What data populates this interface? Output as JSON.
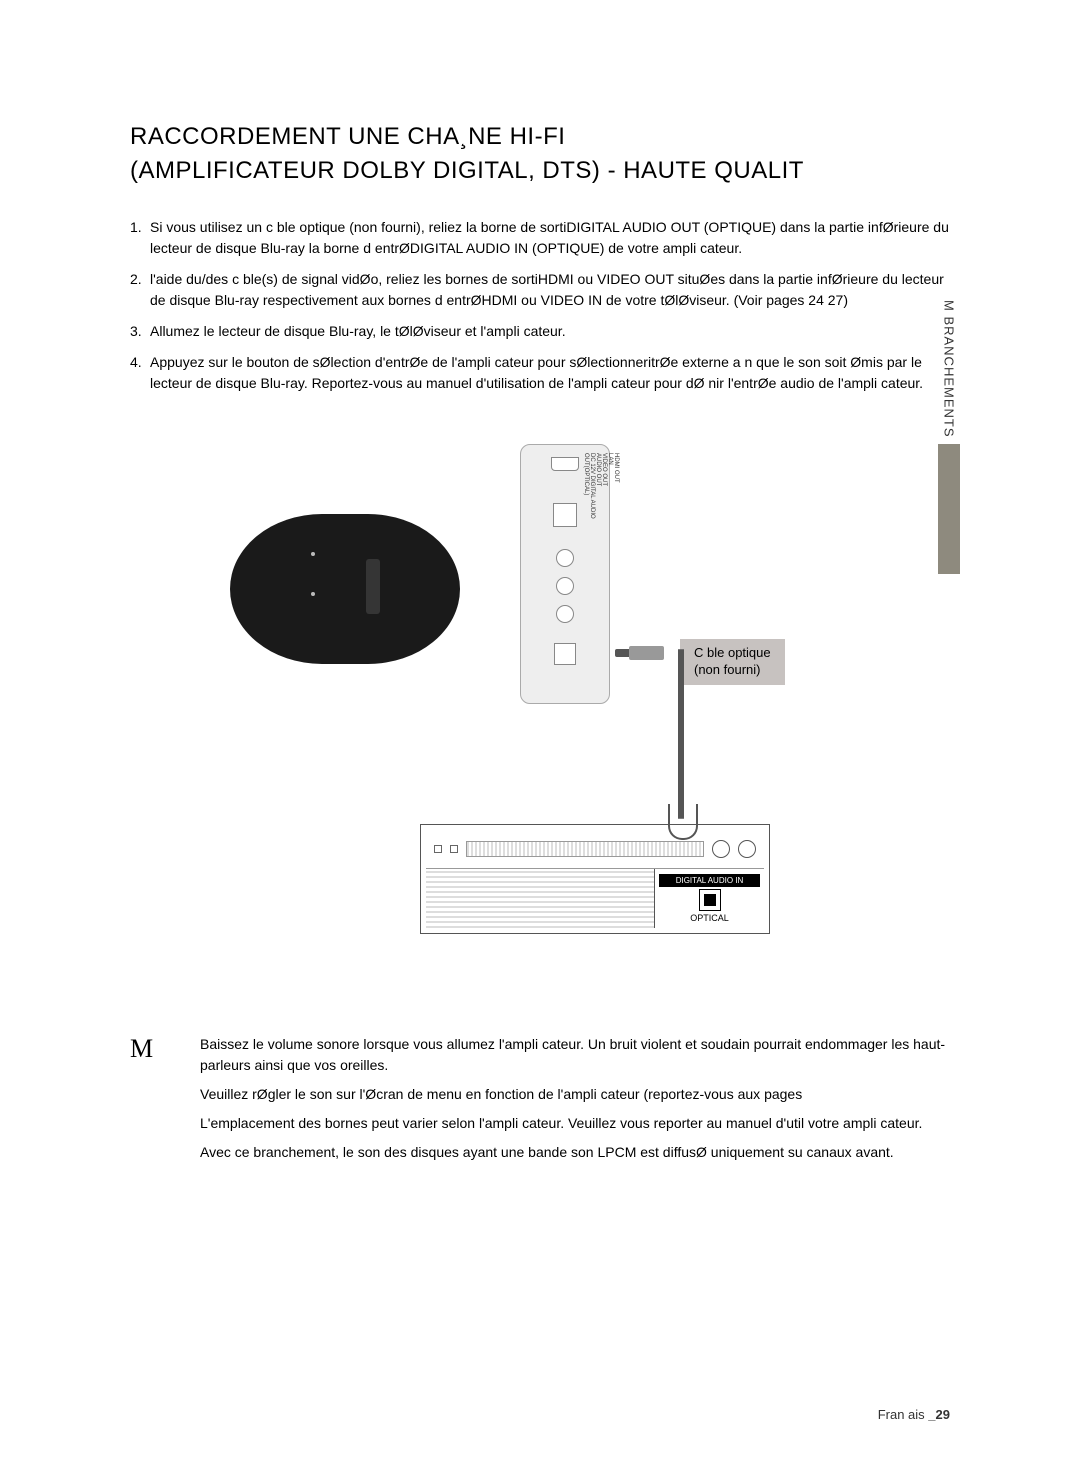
{
  "title_line1": "RACCORDEMENT   UNE CHA¸NE HI-FI",
  "title_line2": "(AMPLIFICATEUR DOLBY DIGITAL, DTS) - HAUTE QUALIT",
  "steps": [
    {
      "n": "1.",
      "t": "Si vous utilisez un c ble optique (non fourni), reliez la borne de sortiDIGITAL AUDIO OUT (OPTIQUE) dans la partie infØrieure du lecteur de disque Blu-ray   la borne d entrØDIGITAL AUDIO IN (OPTIQUE) de votre ampli cateur."
    },
    {
      "n": "2.",
      "t": "  l'aide du/des c ble(s) de signal vidØo, reliez les bornes de sortiHDMI ou VIDEO OUT situØes dans la partie infØrieure du lecteur de disque Blu-ray respectivement aux bornes d entrØHDMI ou VIDEO IN de votre tØlØviseur. (Voir pages 24   27)"
    },
    {
      "n": "3.",
      "t": "Allumez le lecteur de disque Blu-ray, le tØlØviseur et l'ampli cateur."
    },
    {
      "n": "4.",
      "t": "Appuyez sur le bouton de sØlection d'entrØe de l'ampli cateur pour sØlectionneritrØe externe a n que le son soit Ømis par le lecteur de disque Blu-ray. Reportez-vous au manuel d'utilisation de l'ampli cateur pour dØ nir l'entrØe audio de l'ampli cateur."
    }
  ],
  "side_label": "M  BRANCHEMENTS",
  "diagram": {
    "rear_labels": [
      "HDMI OUT",
      "LAN",
      "VIDEO OUT",
      "AUDIO OUT",
      "DC 12V  DIGITAL AUDIO",
      "OUT(OPTICAL)"
    ],
    "callout_line1": "C ble optique",
    "callout_line2": "(non fourni)",
    "amp_header": "DIGITAL AUDIO IN",
    "amp_opt_label": "OPTICAL",
    "colors": {
      "player_body": "#1a1a1a",
      "rear_body": "#eeeeee",
      "callout_bg": "#c7c2c0",
      "side_box": "#8e8a7e"
    }
  },
  "note_symbol": "M",
  "notes": [
    "Baissez le volume sonore lorsque vous allumez l'ampli cateur. Un bruit violent et soudain pourrait endommager les haut-parleurs ainsi que vos oreilles.",
    "Veuillez rØgler le son sur l'Øcran de menu en fonction de l'ampli cateur (reportez-vous aux pages",
    "L'emplacement des bornes peut varier selon l'ampli cateur. Veuillez vous reporter au manuel d'util votre ampli cateur.",
    "Avec ce branchement, le son des disques ayant une bande son LPCM est diffusØ uniquement su canaux avant."
  ],
  "footer_lang": "Fran ais ",
  "footer_page": "_29"
}
